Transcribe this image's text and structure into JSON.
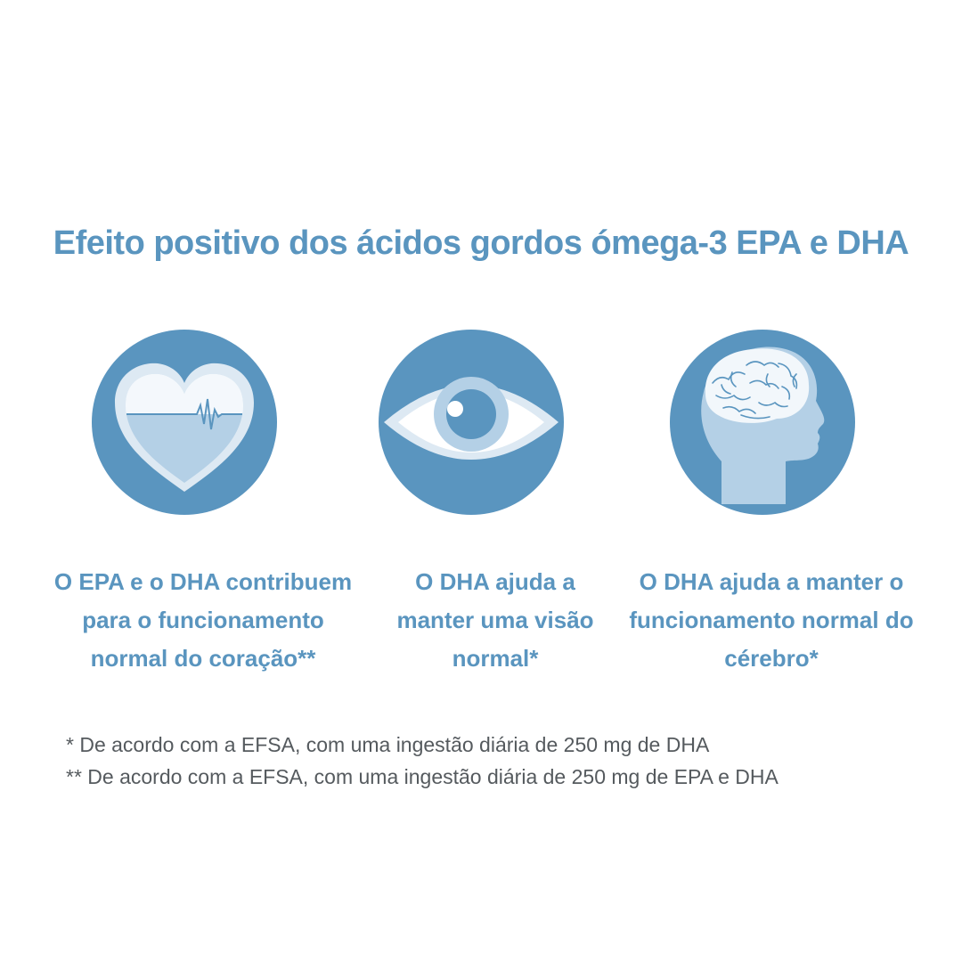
{
  "title": "Efeito positivo dos ácidos gordos ómega-3 EPA e DHA",
  "colors": {
    "accent": "#5a95bf",
    "circle": "#5a95bf",
    "light": "#b4d0e6",
    "pale": "#dde9f3",
    "note_text": "#555a5e"
  },
  "benefits": [
    {
      "icon": "heart-icon",
      "lines": [
        "O EPA e o DHA contribuem",
        "para o funcionamento",
        "normal do coração**"
      ]
    },
    {
      "icon": "eye-icon",
      "lines": [
        "O DHA ajuda a",
        "manter uma visão",
        "normal*"
      ]
    },
    {
      "icon": "brain-head-icon",
      "lines": [
        "O DHA ajuda a manter o",
        "funcionamento normal do",
        "cérebro*"
      ]
    }
  ],
  "footnotes": [
    "* De acordo com a EFSA, com uma ingestão diária de 250 mg de DHA",
    "** De acordo com a EFSA, com uma ingestão diária de 250 mg de EPA e DHA"
  ]
}
